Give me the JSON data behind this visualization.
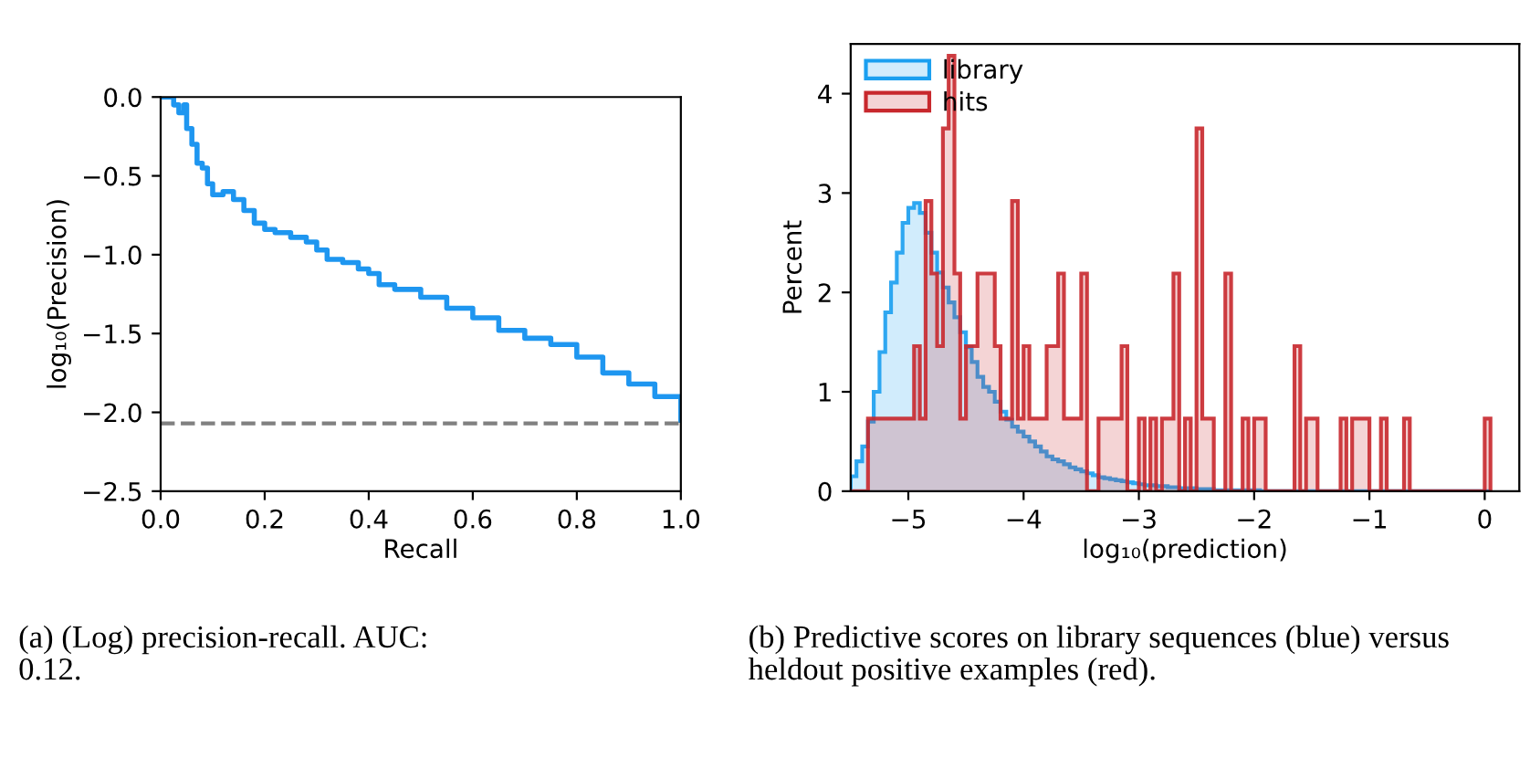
{
  "chart_data": [
    {
      "type": "step",
      "xlabel": "Recall",
      "ylabel": "log₁₀(Precision)",
      "x": [
        0,
        0.02,
        0.025,
        0.035,
        0.045,
        0.05,
        0.06,
        0.07,
        0.08,
        0.09,
        0.1,
        0.12,
        0.14,
        0.16,
        0.18,
        0.2,
        0.22,
        0.25,
        0.28,
        0.3,
        0.32,
        0.35,
        0.38,
        0.4,
        0.42,
        0.45,
        0.5,
        0.55,
        0.6,
        0.65,
        0.7,
        0.75,
        0.8,
        0.85,
        0.9,
        0.95,
        1.0
      ],
      "series": [
        {
          "color": "#1e96f0",
          "values": [
            0,
            0,
            -0.05,
            -0.1,
            -0.05,
            -0.2,
            -0.3,
            -0.42,
            -0.45,
            -0.55,
            -0.62,
            -0.6,
            -0.65,
            -0.72,
            -0.8,
            -0.84,
            -0.86,
            -0.89,
            -0.92,
            -0.97,
            -1.03,
            -1.05,
            -1.09,
            -1.12,
            -1.19,
            -1.22,
            -1.27,
            -1.34,
            -1.4,
            -1.48,
            -1.53,
            -1.57,
            -1.65,
            -1.75,
            -1.82,
            -1.9,
            -2.05
          ]
        }
      ],
      "xlim": [
        0,
        1
      ],
      "ylim": [
        -2.5,
        0
      ],
      "xticks": [
        {
          "value": 0,
          "label": "0.0"
        },
        {
          "value": 0.2,
          "label": "0.2"
        },
        {
          "value": 0.4,
          "label": "0.4"
        },
        {
          "value": 0.6,
          "label": "0.6"
        },
        {
          "value": 0.8,
          "label": "0.8"
        },
        {
          "value": 1,
          "label": "1.0"
        }
      ],
      "yticks": [
        {
          "value": 0,
          "label": "0.0"
        },
        {
          "value": -0.5,
          "label": "−0.5"
        },
        {
          "value": -1,
          "label": "−1.0"
        },
        {
          "value": -1.5,
          "label": "−1.5"
        },
        {
          "value": -2,
          "label": "−2.0"
        },
        {
          "value": -2.5,
          "label": "−2.5"
        }
      ],
      "ref_lines": [
        {
          "axis": "y",
          "value": -2.07,
          "color": "#808080",
          "line_style": "dashed"
        }
      ],
      "grid": false,
      "legend": false,
      "annotations": [
        "(a) (Log) precision-recall. AUC: 0.12."
      ]
    },
    {
      "type": "histogram",
      "xlabel": "log₁₀(prediction)",
      "ylabel": "Percent",
      "bins": [
        -5.5,
        -5.45,
        -5.4,
        -5.35,
        -5.3,
        -5.25,
        -5.2,
        -5.15,
        -5.1,
        -5.05,
        -5.0,
        -4.95,
        -4.9,
        -4.85,
        -4.8,
        -4.75,
        -4.7,
        -4.65,
        -4.6,
        -4.55,
        -4.5,
        -4.45,
        -4.4,
        -4.35,
        -4.3,
        -4.25,
        -4.2,
        -4.15,
        -4.1,
        -4.05,
        -4.0,
        -3.95,
        -3.9,
        -3.85,
        -3.8,
        -3.75,
        -3.7,
        -3.65,
        -3.6,
        -3.55,
        -3.5,
        -3.45,
        -3.4,
        -3.35,
        -3.3,
        -3.25,
        -3.2,
        -3.15,
        -3.1,
        -3.05,
        -3.0,
        -2.95,
        -2.9,
        -2.85,
        -2.8,
        -2.75,
        -2.7,
        -2.65,
        -2.6,
        -2.55,
        -2.5,
        -2.45,
        -2.4,
        -2.35,
        -2.3,
        -2.25,
        -2.2,
        -2.15,
        -2.1,
        -2.05,
        -2.0,
        -1.95,
        -1.9,
        -1.85,
        -1.8,
        -1.75,
        -1.7,
        -1.65,
        -1.6,
        -1.55,
        -1.5,
        -1.45,
        -1.4,
        -1.35,
        -1.3,
        -1.25,
        -1.2,
        -1.15,
        -1.1,
        -1.05,
        -1.0,
        -0.95,
        -0.9,
        -0.85,
        -0.8,
        -0.75,
        -0.7,
        -0.65,
        -0.6,
        -0.55,
        -0.5,
        -0.45,
        -0.4,
        -0.35,
        -0.3,
        -0.25,
        -0.2,
        -0.15,
        -0.1,
        -0.05,
        0.0,
        0.05
      ],
      "series": [
        {
          "name": "library",
          "color": "#1a9ff0",
          "values": [
            0.15,
            0.3,
            0.45,
            0.7,
            1.0,
            1.4,
            1.8,
            2.1,
            2.4,
            2.7,
            2.85,
            2.9,
            2.8,
            2.6,
            2.4,
            2.2,
            2.05,
            1.9,
            1.75,
            1.6,
            1.45,
            1.3,
            1.15,
            1.05,
            1.0,
            0.9,
            0.8,
            0.72,
            0.65,
            0.6,
            0.55,
            0.5,
            0.45,
            0.4,
            0.35,
            0.32,
            0.3,
            0.27,
            0.24,
            0.22,
            0.2,
            0.18,
            0.16,
            0.14,
            0.13,
            0.12,
            0.11,
            0.1,
            0.09,
            0.08,
            0.07,
            0.06,
            0.06,
            0.05,
            0.05,
            0.04,
            0.04,
            0.03,
            0.03,
            0.03,
            0.02,
            0.02,
            0.02,
            0.01,
            0.01,
            0.01,
            0.01,
            0.01,
            0.01,
            0.01,
            0.01,
            0,
            0,
            0,
            0,
            0,
            0,
            0,
            0,
            0,
            0,
            0,
            0,
            0,
            0,
            0,
            0,
            0,
            0,
            0,
            0,
            0,
            0,
            0,
            0,
            0,
            0,
            0,
            0,
            0,
            0,
            0,
            0,
            0,
            0,
            0,
            0,
            0,
            0,
            0,
            0
          ]
        },
        {
          "name": "hits",
          "color": "#c8282d",
          "values": [
            0,
            0,
            0,
            0.73,
            0.73,
            0.73,
            0.73,
            0.73,
            0.73,
            0.73,
            0.73,
            1.46,
            0.73,
            2.92,
            2.19,
            1.46,
            3.65,
            4.38,
            2.19,
            0.73,
            1.46,
            1.46,
            2.19,
            2.19,
            2.19,
            1.46,
            0.73,
            0.73,
            2.92,
            0.73,
            1.46,
            0.73,
            0.73,
            0.73,
            1.46,
            1.46,
            2.19,
            0.73,
            0.73,
            0.73,
            2.19,
            0,
            0,
            0.73,
            0.73,
            0.73,
            0.73,
            1.46,
            0,
            0,
            0.73,
            0,
            0.73,
            0,
            0.73,
            0.73,
            2.19,
            0,
            0.73,
            0,
            3.65,
            0.73,
            0.73,
            0,
            0,
            2.19,
            0,
            0,
            0.73,
            0,
            0.73,
            0.73,
            0,
            0,
            0,
            0,
            0,
            1.46,
            0,
            0.73,
            0.73,
            0,
            0,
            0,
            0,
            0.73,
            0,
            0.73,
            0.73,
            0.73,
            0,
            0,
            0.73,
            0,
            0,
            0,
            0.73,
            0,
            0,
            0,
            0,
            0,
            0,
            0,
            0,
            0,
            0,
            0,
            0,
            0,
            0.73
          ]
        }
      ],
      "xlim": [
        -5.5,
        0.3
      ],
      "ylim": [
        0,
        4.5
      ],
      "xticks": [
        {
          "value": -5,
          "label": "−5"
        },
        {
          "value": -4,
          "label": "−4"
        },
        {
          "value": -3,
          "label": "−3"
        },
        {
          "value": -2,
          "label": "−2"
        },
        {
          "value": -1,
          "label": "−1"
        },
        0
      ],
      "yticks": [
        0,
        1,
        2,
        3,
        4
      ],
      "grid": false,
      "legend": "top left",
      "annotations": [
        "(b) Predictive scores on library sequences (blue) versus heldout positive examples (red)."
      ]
    }
  ]
}
